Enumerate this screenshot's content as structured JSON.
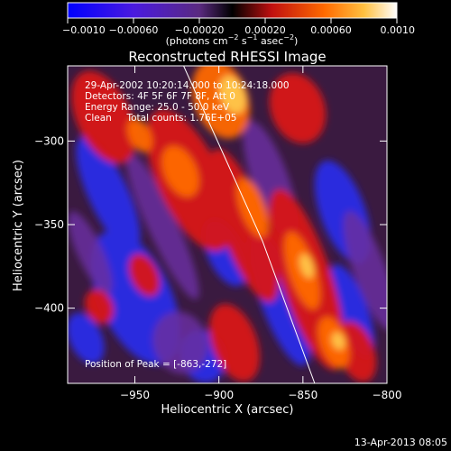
{
  "chart_data": {
    "type": "heatmap",
    "title": "Reconstructed RHESSI Image",
    "xlabel": "Heliocentric X (arcsec)",
    "ylabel": "Heliocentric Y (arcsec)",
    "xlim": [
      -990,
      -800
    ],
    "ylim": [
      -445,
      -255
    ],
    "x_ticks": [
      -950,
      -900,
      -850,
      -800
    ],
    "x_tick_labels": [
      "−950",
      "−900",
      "−850",
      "−800"
    ],
    "y_ticks": [
      -300,
      -350,
      -400
    ],
    "y_tick_labels": [
      "−300",
      "−350",
      "−400"
    ],
    "colorbar": {
      "range": [
        -0.001,
        0.001
      ],
      "ticks": [
        -0.001,
        -0.0006,
        -0.0002,
        0.0002,
        0.0006,
        0.001
      ],
      "tick_labels": [
        "−0.0010",
        "−0.00060",
        "−0.00020",
        "0.00020",
        "0.00060",
        "0.0010"
      ],
      "unit_text": "(photons cm",
      "unit_sup1": "−2",
      "unit_mid": " s",
      "unit_sup2": "−1",
      "unit_mid2": " asec",
      "unit_sup3": "−2",
      "unit_end": ")"
    },
    "annotations": [
      "29-Apr-2002 10:20:14.000 to 10:24:18.000",
      "Detectors: 4F 5F 6F 7F 8F, Att 0",
      "Energy Range: 25.0 - 50.0 keV",
      "Clean     Total counts: 1.76E+05"
    ],
    "peak_label": "Position of Peak = [-863,-272]",
    "limb_line": [
      [
        -921,
        -255
      ],
      [
        -874,
        -360
      ],
      [
        -843,
        -445
      ]
    ],
    "grid": false
  },
  "footer": {
    "timestamp": "13-Apr-2013 08:05"
  },
  "colors": {
    "background": "#000000",
    "blue": "#1e2cff",
    "purple": "#6a2a9a",
    "dark": "#1a0f1a",
    "red": "#d81818",
    "orange": "#ff6a00",
    "yellow": "#ffd84a"
  }
}
